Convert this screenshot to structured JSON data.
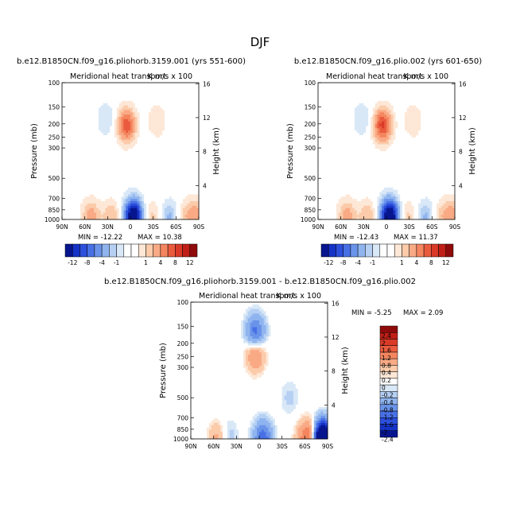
{
  "figure_title": "DJF",
  "colors": {
    "pos": [
      "#fde7d6",
      "#fbcbaa",
      "#f9aa85",
      "#f4865f",
      "#ea5b3e",
      "#d93a28",
      "#c01f17",
      "#8f0b0b"
    ],
    "neg": [
      "#d9e8f7",
      "#b5d0f3",
      "#8fb4ef",
      "#6a93ea",
      "#4870e5",
      "#2c4fdc",
      "#1633c7",
      "#07168f"
    ],
    "zero": "#ffffff"
  },
  "chart_data": [
    {
      "type": "heatmap",
      "subtitle": "b.e12.B1850CN.f09_g16.pliohorb.3159.001 (yrs 551-600)",
      "title": "Meridional heat transport",
      "units": "K m/s x 100",
      "xlabel": "",
      "ylabel": "Pressure (mb)",
      "ylabel_right": "Height (km)",
      "x_ticks": [
        "90N",
        "60N",
        "30N",
        "0",
        "30S",
        "60S",
        "90S"
      ],
      "y_ticks": [
        "100",
        "150",
        "200",
        "250",
        "300",
        "500",
        "700",
        "850",
        "1000"
      ],
      "y_ticks_right": [
        "16",
        "12",
        "8",
        "4"
      ],
      "min_label": "MIN = -12.22",
      "max_label": "MAX =   10.38",
      "colorbar_levels": [
        "-12",
        "-8",
        "-4",
        "-1",
        "1",
        "4",
        "8",
        "12"
      ],
      "features": [
        {
          "lat": 5,
          "p": 205,
          "amp": 9.5
        },
        {
          "lat": -5,
          "p": 980,
          "amp": -12.2
        },
        {
          "lat": -3,
          "p": 900,
          "amp": -7
        },
        {
          "lat": 32,
          "p": 185,
          "amp": -2.5
        },
        {
          "lat": -35,
          "p": 190,
          "amp": 2.5
        },
        {
          "lat": 25,
          "p": 960,
          "amp": 4
        },
        {
          "lat": 52,
          "p": 950,
          "amp": 5
        },
        {
          "lat": -28,
          "p": 970,
          "amp": 3.2
        },
        {
          "lat": -52,
          "p": 970,
          "amp": -4.5
        },
        {
          "lat": -72,
          "p": 965,
          "amp": 3
        },
        {
          "lat": -87,
          "p": 920,
          "amp": 4.5
        }
      ]
    },
    {
      "type": "heatmap",
      "subtitle": "b.e12.B1850CN.f09_g16.plio.002 (yrs 601-650)",
      "title": "Meridional heat transport",
      "units": "K m/s x 100",
      "xlabel": "",
      "ylabel": "Pressure (mb)",
      "ylabel_right": "Height (km)",
      "x_ticks": [
        "90N",
        "60N",
        "30N",
        "0",
        "30S",
        "60S",
        "90S"
      ],
      "y_ticks": [
        "100",
        "150",
        "200",
        "250",
        "300",
        "500",
        "700",
        "850",
        "1000"
      ],
      "y_ticks_right": [
        "16",
        "12",
        "8",
        "4"
      ],
      "min_label": "MIN = -12.43",
      "max_label": "MAX =   11.37",
      "colorbar_levels": [
        "-12",
        "-8",
        "-4",
        "-1",
        "1",
        "4",
        "8",
        "12"
      ],
      "features": [
        {
          "lat": 5,
          "p": 205,
          "amp": 10.5
        },
        {
          "lat": -5,
          "p": 980,
          "amp": -12.4
        },
        {
          "lat": -3,
          "p": 900,
          "amp": -7.2
        },
        {
          "lat": 32,
          "p": 185,
          "amp": -2.5
        },
        {
          "lat": -35,
          "p": 190,
          "amp": 2.5
        },
        {
          "lat": 25,
          "p": 960,
          "amp": 4
        },
        {
          "lat": 52,
          "p": 950,
          "amp": 5
        },
        {
          "lat": -28,
          "p": 970,
          "amp": 3.2
        },
        {
          "lat": -52,
          "p": 970,
          "amp": -4.5
        },
        {
          "lat": -72,
          "p": 965,
          "amp": 3
        },
        {
          "lat": -87,
          "p": 920,
          "amp": 4.5
        }
      ]
    },
    {
      "type": "heatmap",
      "subtitle": "b.e12.B1850CN.f09_g16.pliohorb.3159.001 - b.e12.B1850CN.f09_g16.plio.002",
      "title": "Meridional heat transport",
      "units": "K m/s x 100",
      "xlabel": "",
      "ylabel": "Pressure (mb)",
      "ylabel_right": "Height (km)",
      "x_ticks": [
        "90N",
        "60N",
        "30N",
        "0",
        "30S",
        "60S",
        "90S"
      ],
      "y_ticks": [
        "100",
        "150",
        "200",
        "250",
        "300",
        "500",
        "700",
        "850",
        "1000"
      ],
      "y_ticks_right": [
        "16",
        "12",
        "8",
        "4"
      ],
      "min_label": "MIN =   -5.25",
      "max_label": "MAX =    2.09",
      "colorbar_levels": [
        "2.4",
        "2",
        "1.6",
        "1.2",
        "0.8",
        "0.4",
        "0.2",
        "0",
        "-0.2",
        "-0.4",
        "-0.8",
        "-1.2",
        "-1.6",
        "-2",
        "-2.4"
      ],
      "features": [
        {
          "lat": 5,
          "p": 165,
          "amp": -1.4
        },
        {
          "lat": 5,
          "p": 240,
          "amp": 0.9
        },
        {
          "lat": -5,
          "p": 985,
          "amp": -1.5
        },
        {
          "lat": -72,
          "p": 975,
          "amp": 1.6
        },
        {
          "lat": -82,
          "p": 990,
          "amp": -5.25
        },
        {
          "lat": -60,
          "p": 990,
          "amp": 0.7
        },
        {
          "lat": 40,
          "p": 950,
          "amp": -0.3
        },
        {
          "lat": -40,
          "p": 500,
          "amp": -0.25
        },
        {
          "lat": 55,
          "p": 990,
          "amp": 0.5
        }
      ]
    }
  ]
}
